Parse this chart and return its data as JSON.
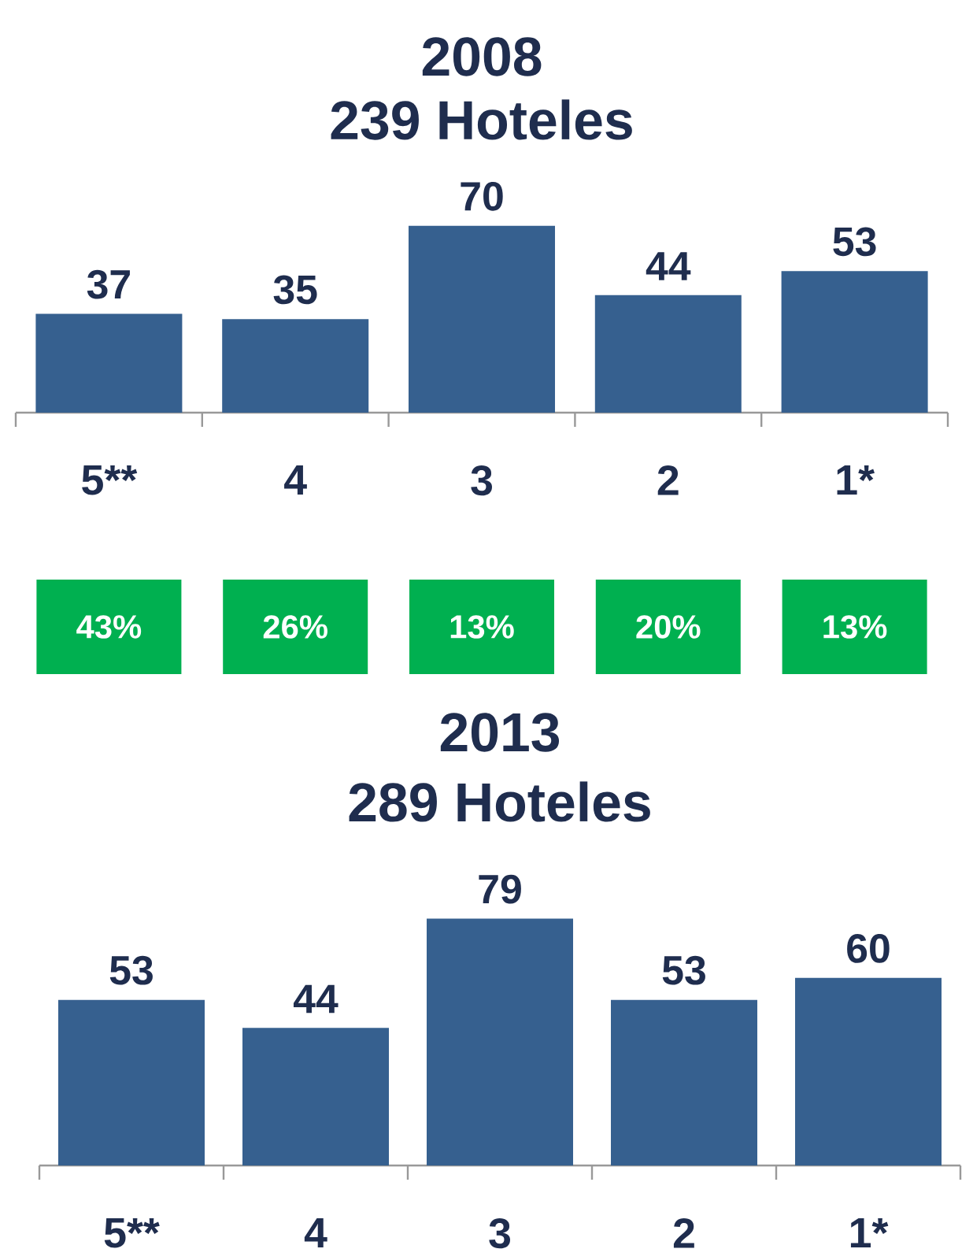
{
  "chart_data": [
    {
      "type": "bar",
      "title": "2008",
      "subtitle": "239 Hoteles",
      "categories": [
        "5**",
        "4",
        "3",
        "2",
        "1*"
      ],
      "values": [
        37,
        35,
        70,
        44,
        53
      ],
      "color": "#36608f",
      "data_labels": true,
      "annotations": [
        "43%",
        "26%",
        "13%",
        "20%",
        "13%"
      ]
    },
    {
      "type": "bar",
      "title": "2013",
      "subtitle": "289 Hoteles",
      "categories": [
        "5**",
        "4",
        "3",
        "2",
        "1*"
      ],
      "values": [
        53,
        44,
        79,
        53,
        60
      ],
      "color": "#36608f",
      "data_labels": true
    }
  ]
}
